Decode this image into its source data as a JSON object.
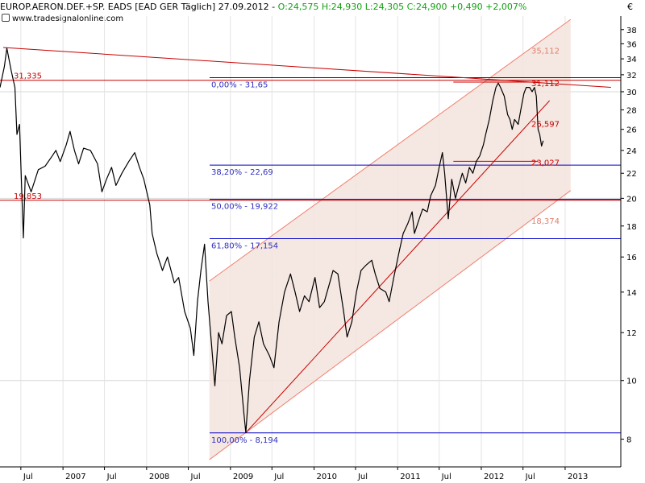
{
  "header": {
    "instrument": "EUROP.AERON.DEF.+SP. EADS [EAD GER",
    "period": "Täglich]",
    "date": "27.09.2012",
    "ohlc": "O:24,575 H:24,930 L:24,305 C:24,900 +0,490 +2,007%",
    "source": "www.tradesignalonline.com"
  },
  "colors": {
    "price": "#000000",
    "fib_line": "#0000c8",
    "fib_text": "#3030c0",
    "resistance": "#c80000",
    "channel_fill": "#f3e3dc",
    "channel_edge": "#f08070",
    "faded_label": "#e08070",
    "header_green": "#10a010"
  },
  "chart_data": {
    "type": "line",
    "title": "EUROP.AERON.DEF.+SP. EADS [EAD GER Täglich]",
    "currency_label": "€",
    "y_scale": "log",
    "ylim": [
      7.2,
      40
    ],
    "xlim": [
      "2006-04-01",
      "2013-09-01"
    ],
    "y_ticks": [
      8,
      10,
      12,
      14,
      16,
      18,
      20,
      22,
      24,
      26,
      28,
      30,
      32,
      34,
      36,
      38
    ],
    "x_ticks": [
      {
        "label": "Jul",
        "date": "2006-07-01"
      },
      {
        "label": "2007",
        "date": "2007-01-01"
      },
      {
        "label": "Jul",
        "date": "2007-07-01"
      },
      {
        "label": "2008",
        "date": "2008-01-01"
      },
      {
        "label": "Jul",
        "date": "2008-07-01"
      },
      {
        "label": "2009",
        "date": "2009-01-01"
      },
      {
        "label": "Jul",
        "date": "2009-07-01"
      },
      {
        "label": "2010",
        "date": "2010-01-01"
      },
      {
        "label": "Jul",
        "date": "2010-07-01"
      },
      {
        "label": "2011",
        "date": "2011-01-01"
      },
      {
        "label": "Jul",
        "date": "2011-07-01"
      },
      {
        "label": "2012",
        "date": "2012-01-01"
      },
      {
        "label": "Jul",
        "date": "2012-07-01"
      },
      {
        "label": "2013",
        "date": "2013-01-01"
      }
    ],
    "grid": true,
    "series": [
      {
        "points": [
          [
            "2006-04-01",
            30.5
          ],
          [
            "2006-04-20",
            33.0
          ],
          [
            "2006-05-01",
            35.4
          ],
          [
            "2006-05-20",
            32.5
          ],
          [
            "2006-06-05",
            30.5
          ],
          [
            "2006-06-14",
            25.5
          ],
          [
            "2006-06-25",
            26.5
          ],
          [
            "2006-07-05",
            20.5
          ],
          [
            "2006-07-12",
            17.2
          ],
          [
            "2006-07-20",
            21.8
          ],
          [
            "2006-08-15",
            20.5
          ],
          [
            "2006-09-15",
            22.3
          ],
          [
            "2006-10-15",
            22.6
          ],
          [
            "2006-11-15",
            23.5
          ],
          [
            "2006-12-01",
            24.0
          ],
          [
            "2006-12-20",
            23.0
          ],
          [
            "2007-01-15",
            24.5
          ],
          [
            "2007-02-01",
            25.8
          ],
          [
            "2007-02-20",
            24.0
          ],
          [
            "2007-03-10",
            22.8
          ],
          [
            "2007-04-01",
            24.2
          ],
          [
            "2007-05-01",
            24.0
          ],
          [
            "2007-06-01",
            22.8
          ],
          [
            "2007-06-20",
            20.5
          ],
          [
            "2007-07-10",
            21.5
          ],
          [
            "2007-08-01",
            22.5
          ],
          [
            "2007-08-20",
            21.0
          ],
          [
            "2007-09-15",
            22.0
          ],
          [
            "2007-10-15",
            23.0
          ],
          [
            "2007-11-10",
            23.8
          ],
          [
            "2007-12-01",
            22.5
          ],
          [
            "2007-12-20",
            21.5
          ],
          [
            "2008-01-15",
            19.5
          ],
          [
            "2008-01-25",
            17.5
          ],
          [
            "2008-02-15",
            16.2
          ],
          [
            "2008-03-10",
            15.2
          ],
          [
            "2008-04-01",
            16.0
          ],
          [
            "2008-05-01",
            14.5
          ],
          [
            "2008-05-20",
            14.8
          ],
          [
            "2008-06-15",
            13.0
          ],
          [
            "2008-07-10",
            12.2
          ],
          [
            "2008-07-25",
            11.0
          ],
          [
            "2008-08-10",
            13.5
          ],
          [
            "2008-08-25",
            15.2
          ],
          [
            "2008-09-10",
            16.8
          ],
          [
            "2008-09-25",
            13.5
          ],
          [
            "2008-10-10",
            11.5
          ],
          [
            "2008-10-25",
            9.8
          ],
          [
            "2008-11-10",
            12.0
          ],
          [
            "2008-11-25",
            11.5
          ],
          [
            "2008-12-15",
            12.8
          ],
          [
            "2009-01-05",
            13.0
          ],
          [
            "2009-01-20",
            11.8
          ],
          [
            "2009-02-10",
            10.5
          ],
          [
            "2009-03-01",
            8.8
          ],
          [
            "2009-03-09",
            8.2
          ],
          [
            "2009-03-25",
            10.0
          ],
          [
            "2009-04-15",
            11.8
          ],
          [
            "2009-05-05",
            12.5
          ],
          [
            "2009-05-25",
            11.5
          ],
          [
            "2009-06-20",
            11.0
          ],
          [
            "2009-07-10",
            10.5
          ],
          [
            "2009-08-01",
            12.5
          ],
          [
            "2009-08-25",
            14.0
          ],
          [
            "2009-09-20",
            15.0
          ],
          [
            "2009-10-10",
            14.0
          ],
          [
            "2009-10-30",
            13.0
          ],
          [
            "2009-11-20",
            13.8
          ],
          [
            "2009-12-10",
            13.5
          ],
          [
            "2010-01-05",
            14.8
          ],
          [
            "2010-01-25",
            13.2
          ],
          [
            "2010-02-15",
            13.5
          ],
          [
            "2010-03-10",
            14.5
          ],
          [
            "2010-03-25",
            15.2
          ],
          [
            "2010-04-15",
            15.0
          ],
          [
            "2010-05-10",
            13.0
          ],
          [
            "2010-05-25",
            11.8
          ],
          [
            "2010-06-15",
            12.5
          ],
          [
            "2010-07-05",
            14.0
          ],
          [
            "2010-07-25",
            15.2
          ],
          [
            "2010-08-15",
            15.5
          ],
          [
            "2010-09-10",
            15.8
          ],
          [
            "2010-09-25",
            15.0
          ],
          [
            "2010-10-15",
            14.2
          ],
          [
            "2010-11-10",
            14.0
          ],
          [
            "2010-11-25",
            13.5
          ],
          [
            "2010-12-15",
            14.8
          ],
          [
            "2011-01-10",
            16.5
          ],
          [
            "2011-01-25",
            17.5
          ],
          [
            "2011-02-15",
            18.2
          ],
          [
            "2011-03-05",
            19.0
          ],
          [
            "2011-03-15",
            17.5
          ],
          [
            "2011-04-05",
            18.5
          ],
          [
            "2011-04-20",
            19.2
          ],
          [
            "2011-05-10",
            19.0
          ],
          [
            "2011-05-25",
            20.2
          ],
          [
            "2011-06-15",
            21.0
          ],
          [
            "2011-07-01",
            22.5
          ],
          [
            "2011-07-15",
            23.8
          ],
          [
            "2011-07-25",
            22.0
          ],
          [
            "2011-08-05",
            19.5
          ],
          [
            "2011-08-10",
            18.5
          ],
          [
            "2011-08-25",
            21.5
          ],
          [
            "2011-09-10",
            20.0
          ],
          [
            "2011-09-25",
            21.0
          ],
          [
            "2011-10-10",
            22.0
          ],
          [
            "2011-10-25",
            21.2
          ],
          [
            "2011-11-10",
            22.5
          ],
          [
            "2011-11-25",
            22.0
          ],
          [
            "2011-12-10",
            23.0
          ],
          [
            "2011-12-25",
            23.5
          ],
          [
            "2012-01-10",
            24.5
          ],
          [
            "2012-01-20",
            25.5
          ],
          [
            "2012-02-05",
            27.0
          ],
          [
            "2012-02-20",
            29.0
          ],
          [
            "2012-03-05",
            30.5
          ],
          [
            "2012-03-15",
            31.0
          ],
          [
            "2012-03-25",
            30.5
          ],
          [
            "2012-04-10",
            29.5
          ],
          [
            "2012-04-25",
            27.5
          ],
          [
            "2012-05-05",
            27.0
          ],
          [
            "2012-05-15",
            26.0
          ],
          [
            "2012-05-25",
            27.0
          ],
          [
            "2012-06-10",
            26.5
          ],
          [
            "2012-06-25",
            28.5
          ],
          [
            "2012-07-05",
            29.8
          ],
          [
            "2012-07-15",
            30.5
          ],
          [
            "2012-07-30",
            30.5
          ],
          [
            "2012-08-10",
            30.0
          ],
          [
            "2012-08-20",
            30.5
          ],
          [
            "2012-08-28",
            29.5
          ],
          [
            "2012-09-05",
            26.0
          ],
          [
            "2012-09-12",
            25.5
          ],
          [
            "2012-09-20",
            24.4
          ],
          [
            "2012-09-27",
            24.9
          ]
        ]
      }
    ],
    "fibonacci": [
      {
        "label": "0,00% - 31,65",
        "value": 31.65
      },
      {
        "label": "38,20% - 22,69",
        "value": 22.69
      },
      {
        "label": "50,00% - 19,922",
        "value": 19.922
      },
      {
        "label": "61,80% - 17,154",
        "value": 17.154
      },
      {
        "label": "100,00% - 8,194",
        "value": 8.194
      }
    ],
    "horizontal_levels": [
      {
        "label": "31,335",
        "value": 31.335,
        "side": "left"
      },
      {
        "label": "19,853",
        "value": 19.853,
        "side": "left"
      },
      {
        "label": "31,112",
        "value": 31.112,
        "side": "right"
      },
      {
        "label": "23,027",
        "value": 23.027,
        "side": "right"
      }
    ],
    "trendline_labels": [
      {
        "label": "35,112",
        "value": 35.112,
        "style": "faded"
      },
      {
        "label": "26,597",
        "value": 26.597,
        "style": "strong"
      },
      {
        "label": "18,374",
        "value": 18.374,
        "style": "faded"
      }
    ],
    "trendlines": [
      {
        "kind": "resistance",
        "from": [
          "2006-04-15",
          35.5
        ],
        "to": [
          "2013-07-20",
          30.5
        ]
      },
      {
        "kind": "support",
        "from": [
          "2009-03-09",
          8.2
        ],
        "to": [
          "2012-10-25",
          29.0
        ]
      },
      {
        "kind": "channel-upper",
        "from": [
          "2008-10-01",
          14.6
        ],
        "to": [
          "2013-01-25",
          39.5
        ]
      },
      {
        "kind": "channel-lower",
        "from": [
          "2008-10-01",
          7.4
        ],
        "to": [
          "2013-01-25",
          20.6
        ]
      }
    ]
  }
}
